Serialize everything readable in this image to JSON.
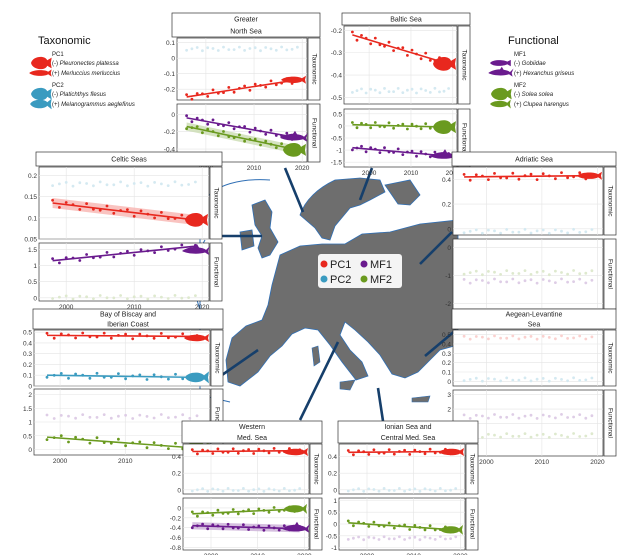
{
  "legend": {
    "taxonomic": {
      "title": "Taxonomic",
      "groups": [
        {
          "label": "PC1",
          "color": "#e8281e",
          "items": [
            {
              "sign": "(-)",
              "species": "Pleuronectes platessa",
              "fish": "flat"
            },
            {
              "sign": "(+)",
              "species": "Merluccius merluccius",
              "fish": "long"
            }
          ]
        },
        {
          "label": "PC2",
          "color": "#3a9bc0",
          "items": [
            {
              "sign": "(-)",
              "species": "Platichthys flesus",
              "fish": "flat"
            },
            {
              "sign": "(+)",
              "species": "Melanogrammus aeglefinus",
              "fish": "round"
            }
          ]
        }
      ]
    },
    "functional": {
      "title": "Functional",
      "groups": [
        {
          "label": "MF1",
          "color": "#6a1b8e",
          "items": [
            {
              "sign": "(-)",
              "species": "Gobiidae",
              "fish": "goby"
            },
            {
              "sign": "(+)",
              "species": "Hexanchus griseus",
              "fish": "shark"
            }
          ]
        },
        {
          "label": "MF2",
          "color": "#6a9a1f",
          "items": [
            {
              "sign": "(-)",
              "species": "Solea solea",
              "fish": "flat"
            },
            {
              "sign": "(+)",
              "species": "Clupea harengus",
              "fish": "herring"
            }
          ]
        }
      ]
    }
  },
  "map_legend": [
    {
      "label": "PC1",
      "color": "#e8281e"
    },
    {
      "label": "MF1",
      "color": "#6a1b8e"
    },
    {
      "label": "PC2",
      "color": "#3a9bc0"
    },
    {
      "label": "MF2",
      "color": "#6a9a1f"
    }
  ],
  "strip_labels": {
    "taxonomic": "Taxonomic",
    "functional": "Functional"
  },
  "chart_data": [
    {
      "type": "line",
      "region": "Greater North Sea",
      "title": "Greater\nNorth Sea",
      "xlim": [
        1994,
        2021
      ],
      "xticks": [
        2000,
        2010,
        2020
      ],
      "taxonomic": {
        "ylim": [
          -0.27,
          0.13
        ],
        "yticks": [
          0.1,
          0.0,
          -0.1,
          -0.2
        ],
        "series": [
          {
            "key": "PC1",
            "values": [
              -0.25,
              -0.14
            ],
            "fish": "long"
          },
          {
            "key": "PC2",
            "values": [
              0.06,
              0.06
            ],
            "faded": true
          }
        ]
      },
      "functional": {
        "ylim": [
          -0.55,
          0.12
        ],
        "yticks": [
          0.0,
          -0.2,
          -0.4
        ],
        "series": [
          {
            "key": "MF1",
            "values": [
              -0.04,
              -0.27
            ],
            "fish": "shark"
          },
          {
            "key": "MF2",
            "values": [
              -0.14,
              -0.41
            ],
            "fish": "flat",
            "band": true
          }
        ]
      }
    },
    {
      "type": "line",
      "region": "Baltic Sea",
      "title": "Baltic Sea",
      "xlim": [
        1994,
        2021
      ],
      "xticks": [
        2000,
        2010,
        2020
      ],
      "taxonomic": {
        "ylim": [
          -0.53,
          -0.18
        ],
        "yticks": [
          -0.2,
          -0.3,
          -0.4,
          -0.5
        ],
        "series": [
          {
            "key": "PC1",
            "values": [
              -0.22,
              -0.35
            ],
            "fish": "flat"
          },
          {
            "key": "PC2",
            "values": [
              -0.47,
              -0.47
            ],
            "faded": true
          }
        ]
      },
      "functional": {
        "ylim": [
          -1.7,
          0.7
        ],
        "yticks": [
          0.5,
          0.0,
          -0.5,
          -1.0,
          -1.5
        ],
        "series": [
          {
            "key": "MF2",
            "values": [
              0.05,
              -0.05
            ],
            "fish": "flat"
          },
          {
            "key": "MF1",
            "values": [
              -0.9,
              -1.25
            ],
            "fish": "shark"
          }
        ]
      }
    },
    {
      "type": "line",
      "region": "Celtic Seas",
      "title": "Celtic Seas",
      "xlim": [
        1996,
        2021
      ],
      "xticks": [
        2000,
        2010,
        2020
      ],
      "taxonomic": {
        "ylim": [
          0.05,
          0.22
        ],
        "yticks": [
          0.2,
          0.15,
          0.1,
          0.05
        ],
        "series": [
          {
            "key": "PC1",
            "values": [
              0.135,
              0.095
            ],
            "fish": "flat",
            "band": true
          },
          {
            "key": "PC2",
            "values": [
              0.18,
              0.18
            ],
            "faded": true
          }
        ]
      },
      "functional": {
        "ylim": [
          -0.1,
          1.7
        ],
        "yticks": [
          1.5,
          1.0,
          0.5,
          0.0
        ],
        "series": [
          {
            "key": "MF1",
            "values": [
              1.15,
              1.6
            ],
            "fish": "shark"
          },
          {
            "key": "MF2",
            "values": [
              0.02,
              0.02
            ],
            "faded": true
          }
        ]
      }
    },
    {
      "type": "line",
      "region": "Adriatic Sea",
      "title": "Adriatic Sea",
      "xlim": [
        1994,
        2021
      ],
      "xticks": [
        2000,
        2010,
        2020
      ],
      "taxonomic": {
        "ylim": [
          -0.05,
          0.5
        ],
        "yticks": [
          0.4,
          0.2,
          0.0
        ],
        "series": [
          {
            "key": "PC1",
            "values": [
              0.42,
              0.43
            ],
            "fish": "long"
          },
          {
            "key": "PC2",
            "values": [
              -0.02,
              -0.02
            ],
            "faded": true
          }
        ]
      },
      "functional": {
        "ylim": [
          -2.2,
          0.3
        ],
        "yticks": [
          0,
          -1,
          -2
        ],
        "series": [
          {
            "key": "MF1",
            "values": [
              -1.2,
              -1.2
            ],
            "faded": true
          },
          {
            "key": "MF2",
            "values": [
              -0.9,
              -0.9
            ],
            "faded": true
          }
        ]
      }
    },
    {
      "type": "line",
      "region": "Bay of Biscay and Iberian Coast",
      "title": "Bay of Biscay and\nIberian Coast",
      "xlim": [
        1996,
        2023
      ],
      "xticks": [
        2000,
        2010,
        2020
      ],
      "taxonomic": {
        "ylim": [
          0.0,
          0.52
        ],
        "yticks": [
          0.5,
          0.4,
          0.3,
          0.2,
          0.1,
          0.0
        ],
        "series": [
          {
            "key": "PC1",
            "values": [
              0.47,
              0.46
            ],
            "fish": "long"
          },
          {
            "key": "PC2",
            "values": [
              0.1,
              0.08
            ],
            "fish": "round"
          }
        ]
      },
      "functional": {
        "ylim": [
          -0.2,
          2.2
        ],
        "yticks": [
          2.0,
          1.5,
          1.0,
          0.5,
          0.0
        ],
        "series": [
          {
            "key": "MF1",
            "values": [
              1.2,
              1.2
            ],
            "faded": true
          },
          {
            "key": "MF2",
            "values": [
              0.45,
              0.05
            ],
            "fish": "flat"
          }
        ]
      }
    },
    {
      "type": "line",
      "region": "Aegean-Levantine Sea",
      "title": "Aegean-Levantine\nSea",
      "xlim": [
        1994,
        2021
      ],
      "xticks": [
        2000,
        2010,
        2020
      ],
      "taxonomic": {
        "ylim": [
          -0.05,
          0.55
        ],
        "yticks": [
          0.5,
          0.4,
          0.3,
          0.2,
          0.1,
          0.0
        ],
        "series": [
          {
            "key": "PC1",
            "values": [
              0.47,
              0.47
            ],
            "faded": true
          },
          {
            "key": "PC2",
            "values": [
              0.02,
              0.02
            ],
            "faded": true
          }
        ]
      },
      "functional": {
        "ylim": [
          -1.2,
          3.3
        ],
        "yticks": [
          3,
          2,
          1,
          0
        ],
        "series": [
          {
            "key": "MF1",
            "values": [
              1.5,
              1.5
            ],
            "faded": true
          },
          {
            "key": "MF2",
            "values": [
              0.2,
              0.2
            ],
            "faded": true
          }
        ]
      }
    },
    {
      "type": "line",
      "region": "Western Med. Sea",
      "title": "Western\nMed. Sea",
      "xlim": [
        1994,
        2021
      ],
      "xticks": [
        2000,
        2010,
        2020
      ],
      "taxonomic": {
        "ylim": [
          -0.05,
          0.55
        ],
        "yticks": [
          0.4,
          0.2,
          0.0
        ],
        "series": [
          {
            "key": "PC1",
            "values": [
              0.46,
              0.47
            ],
            "fish": "long"
          },
          {
            "key": "PC2",
            "values": [
              0.0,
              0.0
            ],
            "faded": true
          }
        ]
      },
      "functional": {
        "ylim": [
          -0.85,
          0.2
        ],
        "yticks": [
          0.0,
          -0.2,
          -0.4,
          -0.6,
          -0.8
        ],
        "series": [
          {
            "key": "MF2",
            "values": [
              -0.12,
              -0.02
            ],
            "fish": "herring"
          },
          {
            "key": "MF1",
            "values": [
              -0.36,
              -0.42
            ],
            "fish": "shark",
            "band": true
          }
        ]
      }
    },
    {
      "type": "line",
      "region": "Ionian Sea and Central Med. Sea",
      "title": "Ionian Sea and\nCentral Med. Sea",
      "xlim": [
        1994,
        2021
      ],
      "xticks": [
        2000,
        2010,
        2020
      ],
      "taxonomic": {
        "ylim": [
          -0.05,
          0.55
        ],
        "yticks": [
          0.4,
          0.2,
          0.0
        ],
        "series": [
          {
            "key": "PC1",
            "values": [
              0.45,
              0.46
            ],
            "fish": "long"
          },
          {
            "key": "PC2",
            "values": [
              0.0,
              0.0
            ],
            "faded": true
          }
        ]
      },
      "functional": {
        "ylim": [
          -1.1,
          1.1
        ],
        "yticks": [
          1.0,
          0.5,
          0.0,
          -0.5,
          -1.0
        ],
        "series": [
          {
            "key": "MF2",
            "values": [
              0.05,
              -0.25
            ],
            "fish": "herring"
          },
          {
            "key": "MF1",
            "values": [
              -0.6,
              -0.6
            ],
            "faded": true
          }
        ]
      }
    }
  ]
}
